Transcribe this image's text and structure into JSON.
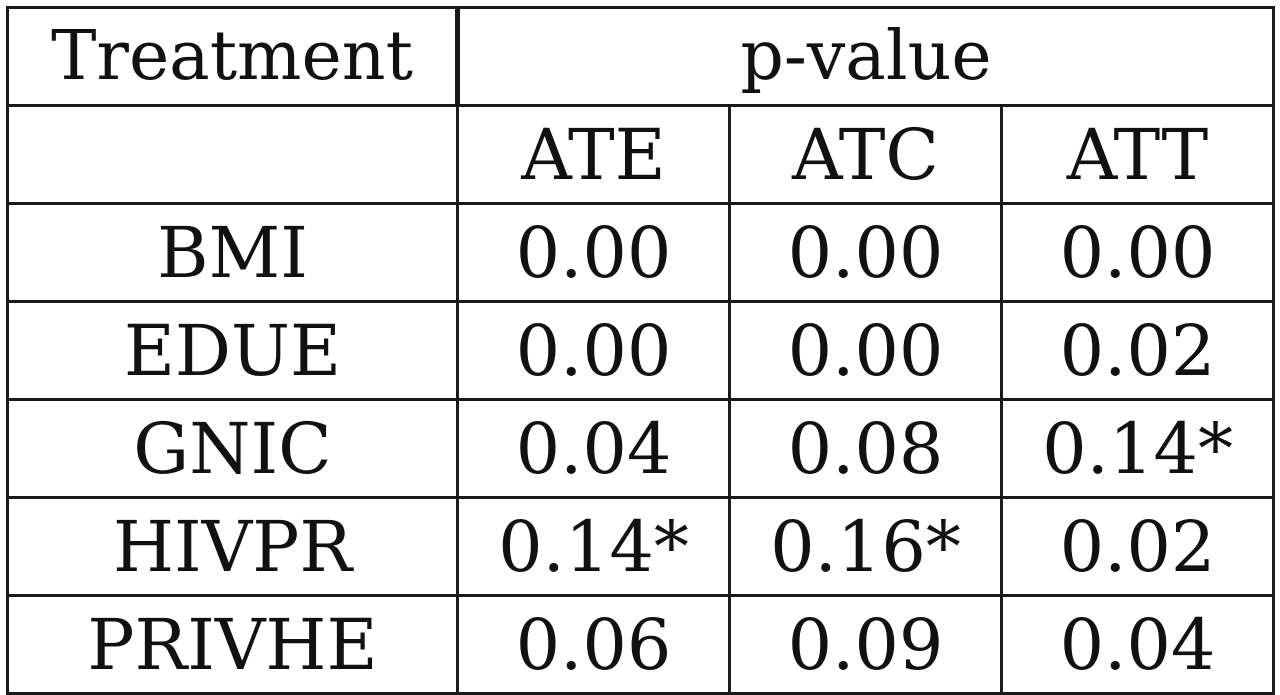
{
  "table": {
    "header_treatment": "Treatment",
    "header_pvalue": "p-value",
    "subheaders": [
      "ATE",
      "ATC",
      "ATT"
    ],
    "rows": [
      {
        "treatment": "BMI",
        "values": [
          "0.00",
          "0.00",
          "0.00"
        ]
      },
      {
        "treatment": "EDUE",
        "values": [
          "0.00",
          "0.00",
          "0.02"
        ]
      },
      {
        "treatment": "GNIC",
        "values": [
          "0.04",
          "0.08",
          "0.14*"
        ]
      },
      {
        "treatment": "HIVPR",
        "values": [
          "0.14*",
          "0.16*",
          "0.02"
        ]
      },
      {
        "treatment": "PRIVHE",
        "values": [
          "0.06",
          "0.09",
          "0.04"
        ]
      }
    ]
  }
}
